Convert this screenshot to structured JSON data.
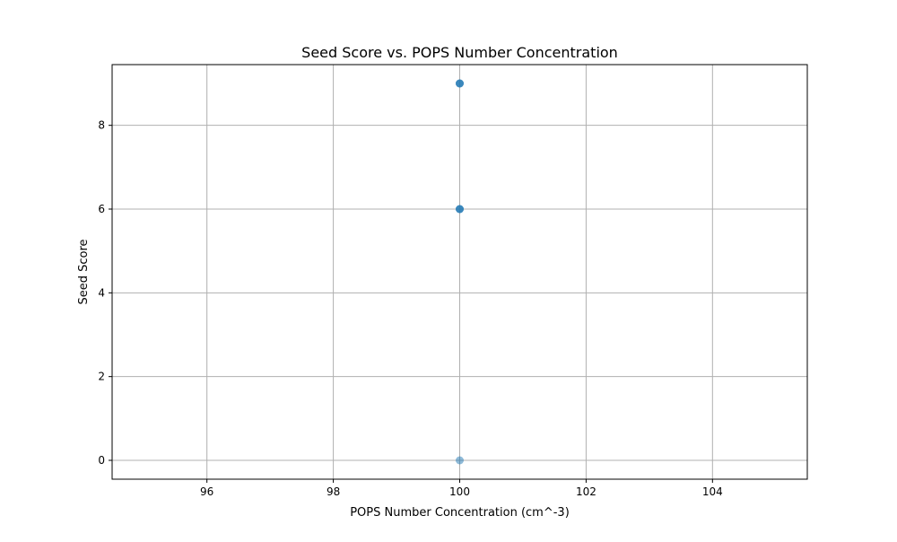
{
  "chart_data": {
    "type": "scatter",
    "title": "Seed Score vs. POPS Number Concentration",
    "xlabel": "POPS Number Concentration (cm^-3)",
    "ylabel": "Seed Score",
    "xlim": [
      94.5,
      105.5
    ],
    "ylim": [
      -0.45,
      9.45
    ],
    "xticks": [
      96,
      98,
      100,
      102,
      104
    ],
    "yticks": [
      0,
      2,
      4,
      6,
      8
    ],
    "grid": true,
    "legend": "none",
    "marker_color": "#1f77b4",
    "marker_alpha": 0.5,
    "points": [
      {
        "x": 100,
        "y": 9
      },
      {
        "x": 100,
        "y": 9
      },
      {
        "x": 100,
        "y": 9
      },
      {
        "x": 100,
        "y": 6
      },
      {
        "x": 100,
        "y": 6
      },
      {
        "x": 100,
        "y": 6
      },
      {
        "x": 100,
        "y": 0
      }
    ]
  }
}
